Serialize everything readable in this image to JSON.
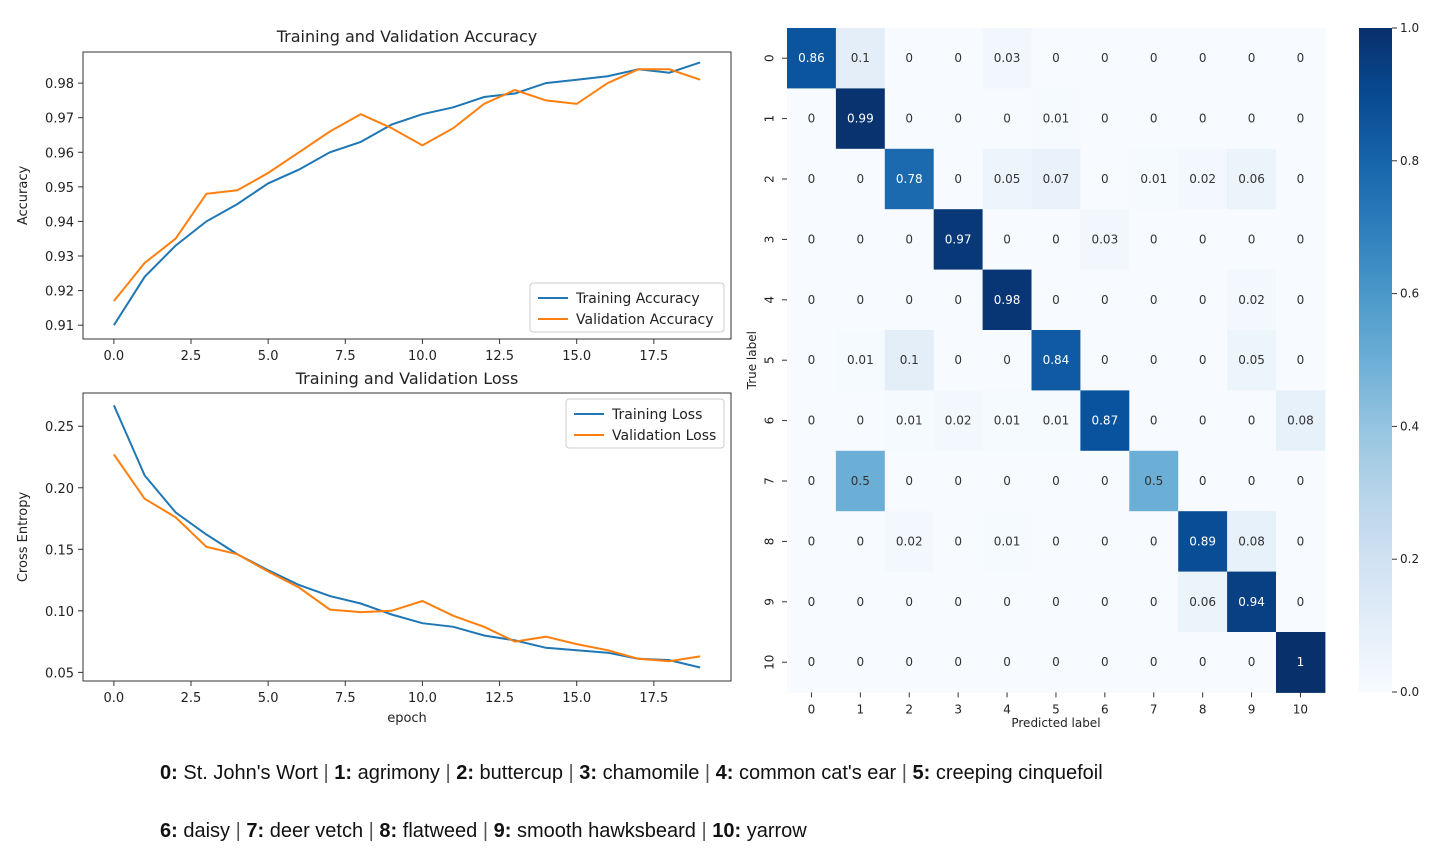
{
  "chart_data": [
    {
      "type": "line",
      "title": "Training and Validation Accuracy",
      "xlabel": "",
      "ylabel": "Accuracy",
      "xlim": [
        -1,
        20
      ],
      "ylim": [
        0.906,
        0.989
      ],
      "xticks": [
        "0.0",
        "2.5",
        "5.0",
        "7.5",
        "10.0",
        "12.5",
        "15.0",
        "17.5"
      ],
      "yticks": [
        "0.91",
        "0.92",
        "0.93",
        "0.94",
        "0.95",
        "0.96",
        "0.97",
        "0.98"
      ],
      "legend_position": "lower-right",
      "x": [
        0,
        1,
        2,
        3,
        4,
        5,
        6,
        7,
        8,
        9,
        10,
        11,
        12,
        13,
        14,
        15,
        16,
        17,
        18,
        19
      ],
      "series": [
        {
          "name": "Training Accuracy",
          "color": "#1f77b4",
          "values": [
            0.91,
            0.924,
            0.933,
            0.94,
            0.945,
            0.951,
            0.955,
            0.96,
            0.963,
            0.968,
            0.971,
            0.973,
            0.976,
            0.977,
            0.98,
            0.981,
            0.982,
            0.984,
            0.983,
            0.986
          ]
        },
        {
          "name": "Validation Accuracy",
          "color": "#ff7f0e",
          "values": [
            0.917,
            0.928,
            0.935,
            0.948,
            0.949,
            0.954,
            0.96,
            0.966,
            0.971,
            0.967,
            0.962,
            0.967,
            0.974,
            0.978,
            0.975,
            0.974,
            0.98,
            0.984,
            0.984,
            0.981
          ]
        }
      ]
    },
    {
      "type": "line",
      "title": "Training and Validation Loss",
      "xlabel": "epoch",
      "ylabel": "Cross Entropy",
      "xlim": [
        -1,
        20
      ],
      "ylim": [
        0.043,
        0.277
      ],
      "xticks": [
        "0.0",
        "2.5",
        "5.0",
        "7.5",
        "10.0",
        "12.5",
        "15.0",
        "17.5"
      ],
      "yticks": [
        "0.05",
        "0.10",
        "0.15",
        "0.20",
        "0.25"
      ],
      "legend_position": "upper-right",
      "x": [
        0,
        1,
        2,
        3,
        4,
        5,
        6,
        7,
        8,
        9,
        10,
        11,
        12,
        13,
        14,
        15,
        16,
        17,
        18,
        19
      ],
      "series": [
        {
          "name": "Training Loss",
          "color": "#1f77b4",
          "values": [
            0.267,
            0.21,
            0.18,
            0.162,
            0.146,
            0.133,
            0.121,
            0.112,
            0.106,
            0.097,
            0.09,
            0.087,
            0.08,
            0.076,
            0.07,
            0.068,
            0.066,
            0.061,
            0.06,
            0.054
          ]
        },
        {
          "name": "Validation Loss",
          "color": "#ff7f0e",
          "values": [
            0.227,
            0.191,
            0.176,
            0.152,
            0.146,
            0.132,
            0.119,
            0.101,
            0.099,
            0.1,
            0.108,
            0.096,
            0.087,
            0.075,
            0.079,
            0.073,
            0.068,
            0.061,
            0.059,
            0.063
          ]
        }
      ]
    },
    {
      "type": "heatmap",
      "title": "",
      "xlabel": "Predicted label",
      "ylabel": "True label",
      "colormap": "Blues",
      "colorbar_ticks": [
        "0.0",
        "0.2",
        "0.4",
        "0.6",
        "0.8",
        "1.0"
      ],
      "x_categories": [
        "0",
        "1",
        "2",
        "3",
        "4",
        "5",
        "6",
        "7",
        "8",
        "9",
        "10"
      ],
      "y_categories": [
        "0",
        "1",
        "2",
        "3",
        "4",
        "5",
        "6",
        "7",
        "8",
        "9",
        "10"
      ],
      "labels": [
        [
          "0.86",
          "0.1",
          "0",
          "0",
          "0.03",
          "0",
          "0",
          "0",
          "0",
          "0",
          "0"
        ],
        [
          "0",
          "0.99",
          "0",
          "0",
          "0",
          "0.01",
          "0",
          "0",
          "0",
          "0",
          "0"
        ],
        [
          "0",
          "0",
          "0.78",
          "0",
          "0.05",
          "0.07",
          "0",
          "0.01",
          "0.02",
          "0.06",
          "0"
        ],
        [
          "0",
          "0",
          "0",
          "0.97",
          "0",
          "0",
          "0.03",
          "0",
          "0",
          "0",
          "0"
        ],
        [
          "0",
          "0",
          "0",
          "0",
          "0.98",
          "0",
          "0",
          "0",
          "0",
          "0.02",
          "0"
        ],
        [
          "0",
          "0.01",
          "0.1",
          "0",
          "0",
          "0.84",
          "0",
          "0",
          "0",
          "0.05",
          "0"
        ],
        [
          "0",
          "0",
          "0.01",
          "0.02",
          "0.01",
          "0.01",
          "0.87",
          "0",
          "0",
          "0",
          "0.08"
        ],
        [
          "0",
          "0.5",
          "0",
          "0",
          "0",
          "0",
          "0",
          "0.5",
          "0",
          "0",
          "0"
        ],
        [
          "0",
          "0",
          "0.02",
          "0",
          "0.01",
          "0",
          "0",
          "0",
          "0.89",
          "0.08",
          "0"
        ],
        [
          "0",
          "0",
          "0",
          "0",
          "0",
          "0",
          "0",
          "0",
          "0.06",
          "0.94",
          "0"
        ],
        [
          "0",
          "0",
          "0",
          "0",
          "0",
          "0",
          "0",
          "0",
          "0",
          "0",
          "1"
        ]
      ]
    }
  ],
  "class_key": [
    [
      {
        "code": "0:",
        "name": "St. John's Wort"
      },
      {
        "code": "1:",
        "name": "agrimony"
      },
      {
        "code": "2:",
        "name": "buttercup"
      },
      {
        "code": "3:",
        "name": "chamomile"
      },
      {
        "code": "4:",
        "name": "common cat's ear"
      },
      {
        "code": "5:",
        "name": "creeping cinquefoil"
      }
    ],
    [
      {
        "code": "6:",
        "name": "daisy"
      },
      {
        "code": "7:",
        "name": "deer vetch"
      },
      {
        "code": "8:",
        "name": "flatweed"
      },
      {
        "code": "9:",
        "name": "smooth hawksbeard"
      },
      {
        "code": "10:",
        "name": "yarrow"
      }
    ]
  ],
  "key_separator": "|"
}
